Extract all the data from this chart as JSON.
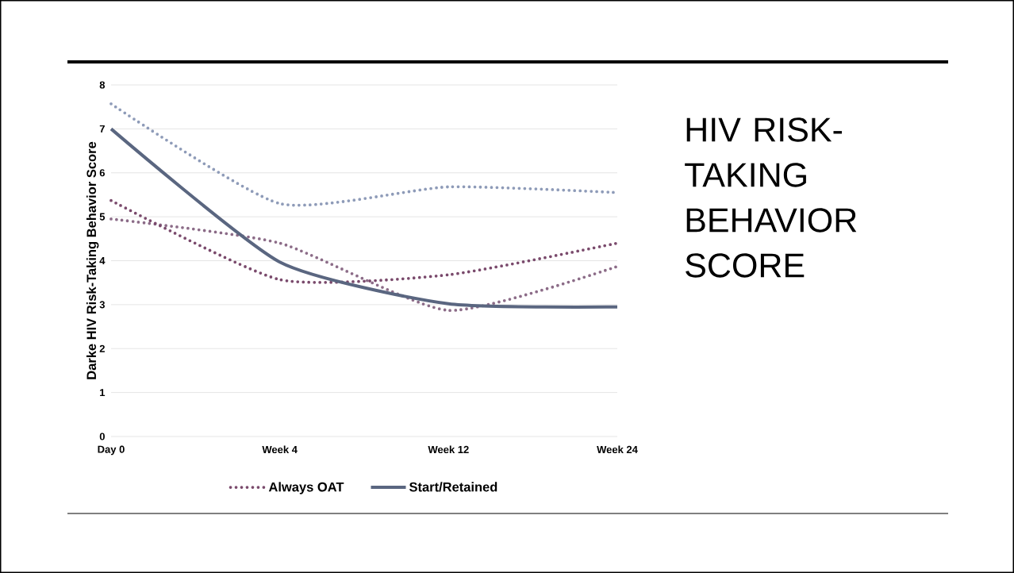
{
  "chart_data": {
    "type": "line",
    "title": "HIV RISK-TAKING BEHAVIOR SCORE",
    "ylabel": "Darke HIV Risk-Taking Behavior Score",
    "categories": [
      "Day 0",
      "Week 4",
      "Week 12",
      "Week 24"
    ],
    "series": [
      {
        "color": "#8e9bb8",
        "values": [
          7.57,
          5.3,
          5.68,
          5.55
        ],
        "line_style": "dotted"
      },
      {
        "color": "#8c6c88",
        "values": [
          4.95,
          4.4,
          2.87,
          3.87
        ],
        "line_style": "dotted"
      },
      {
        "name": "Always OAT",
        "color": "#7a4a6c",
        "values": [
          5.37,
          3.57,
          3.68,
          4.4
        ],
        "line_style": "dotted"
      },
      {
        "name": "Start/Retained",
        "color": "#5a6680",
        "values": [
          7.0,
          3.97,
          3.02,
          2.95
        ],
        "line_style": "solid"
      }
    ],
    "ylim": [
      0,
      8
    ],
    "yticks": [
      0,
      1,
      2,
      3,
      4,
      5,
      6,
      7,
      8
    ],
    "grid": "y",
    "legend": "bottom"
  }
}
